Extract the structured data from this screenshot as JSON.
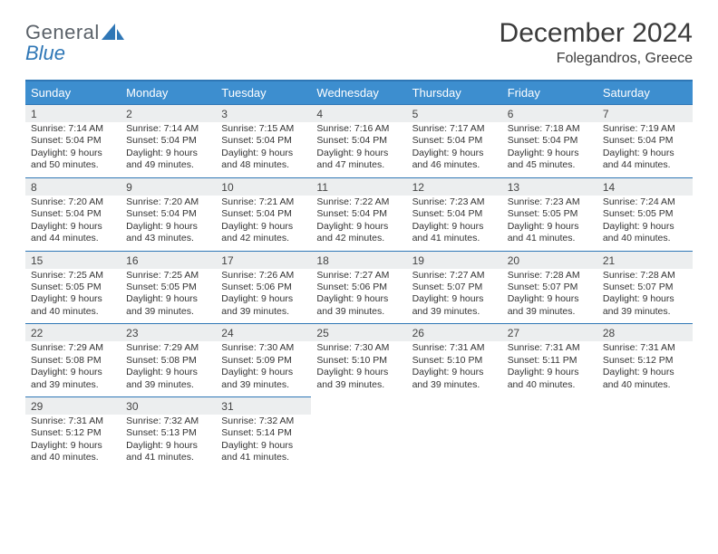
{
  "brand": {
    "line1": "General",
    "line2_prefix": "",
    "line2_blue": "Blue",
    "text_color": "#5b6269",
    "blue_color": "#2f77b6",
    "mark_color": "#2f77b6"
  },
  "title": {
    "month": "December 2024",
    "location": "Folegandros, Greece",
    "font_color": "#3b3b3b"
  },
  "divider_color": "#2f77b6",
  "header_row": {
    "bg": "#3d8ecf",
    "fg": "#ffffff",
    "labels": [
      "Sunday",
      "Monday",
      "Tuesday",
      "Wednesday",
      "Thursday",
      "Friday",
      "Saturday"
    ]
  },
  "daynum_row": {
    "bg": "#eceeef",
    "border": "#2f77b6"
  },
  "columns": 7,
  "days": [
    {
      "n": "1",
      "sunrise": "7:14 AM",
      "sunset": "5:04 PM",
      "dl_h": "9",
      "dl_m": "50"
    },
    {
      "n": "2",
      "sunrise": "7:14 AM",
      "sunset": "5:04 PM",
      "dl_h": "9",
      "dl_m": "49"
    },
    {
      "n": "3",
      "sunrise": "7:15 AM",
      "sunset": "5:04 PM",
      "dl_h": "9",
      "dl_m": "48"
    },
    {
      "n": "4",
      "sunrise": "7:16 AM",
      "sunset": "5:04 PM",
      "dl_h": "9",
      "dl_m": "47"
    },
    {
      "n": "5",
      "sunrise": "7:17 AM",
      "sunset": "5:04 PM",
      "dl_h": "9",
      "dl_m": "46"
    },
    {
      "n": "6",
      "sunrise": "7:18 AM",
      "sunset": "5:04 PM",
      "dl_h": "9",
      "dl_m": "45"
    },
    {
      "n": "7",
      "sunrise": "7:19 AM",
      "sunset": "5:04 PM",
      "dl_h": "9",
      "dl_m": "44"
    },
    {
      "n": "8",
      "sunrise": "7:20 AM",
      "sunset": "5:04 PM",
      "dl_h": "9",
      "dl_m": "44"
    },
    {
      "n": "9",
      "sunrise": "7:20 AM",
      "sunset": "5:04 PM",
      "dl_h": "9",
      "dl_m": "43"
    },
    {
      "n": "10",
      "sunrise": "7:21 AM",
      "sunset": "5:04 PM",
      "dl_h": "9",
      "dl_m": "42"
    },
    {
      "n": "11",
      "sunrise": "7:22 AM",
      "sunset": "5:04 PM",
      "dl_h": "9",
      "dl_m": "42"
    },
    {
      "n": "12",
      "sunrise": "7:23 AM",
      "sunset": "5:04 PM",
      "dl_h": "9",
      "dl_m": "41"
    },
    {
      "n": "13",
      "sunrise": "7:23 AM",
      "sunset": "5:05 PM",
      "dl_h": "9",
      "dl_m": "41"
    },
    {
      "n": "14",
      "sunrise": "7:24 AM",
      "sunset": "5:05 PM",
      "dl_h": "9",
      "dl_m": "40"
    },
    {
      "n": "15",
      "sunrise": "7:25 AM",
      "sunset": "5:05 PM",
      "dl_h": "9",
      "dl_m": "40"
    },
    {
      "n": "16",
      "sunrise": "7:25 AM",
      "sunset": "5:05 PM",
      "dl_h": "9",
      "dl_m": "39"
    },
    {
      "n": "17",
      "sunrise": "7:26 AM",
      "sunset": "5:06 PM",
      "dl_h": "9",
      "dl_m": "39"
    },
    {
      "n": "18",
      "sunrise": "7:27 AM",
      "sunset": "5:06 PM",
      "dl_h": "9",
      "dl_m": "39"
    },
    {
      "n": "19",
      "sunrise": "7:27 AM",
      "sunset": "5:07 PM",
      "dl_h": "9",
      "dl_m": "39"
    },
    {
      "n": "20",
      "sunrise": "7:28 AM",
      "sunset": "5:07 PM",
      "dl_h": "9",
      "dl_m": "39"
    },
    {
      "n": "21",
      "sunrise": "7:28 AM",
      "sunset": "5:07 PM",
      "dl_h": "9",
      "dl_m": "39"
    },
    {
      "n": "22",
      "sunrise": "7:29 AM",
      "sunset": "5:08 PM",
      "dl_h": "9",
      "dl_m": "39"
    },
    {
      "n": "23",
      "sunrise": "7:29 AM",
      "sunset": "5:08 PM",
      "dl_h": "9",
      "dl_m": "39"
    },
    {
      "n": "24",
      "sunrise": "7:30 AM",
      "sunset": "5:09 PM",
      "dl_h": "9",
      "dl_m": "39"
    },
    {
      "n": "25",
      "sunrise": "7:30 AM",
      "sunset": "5:10 PM",
      "dl_h": "9",
      "dl_m": "39"
    },
    {
      "n": "26",
      "sunrise": "7:31 AM",
      "sunset": "5:10 PM",
      "dl_h": "9",
      "dl_m": "39"
    },
    {
      "n": "27",
      "sunrise": "7:31 AM",
      "sunset": "5:11 PM",
      "dl_h": "9",
      "dl_m": "40"
    },
    {
      "n": "28",
      "sunrise": "7:31 AM",
      "sunset": "5:12 PM",
      "dl_h": "9",
      "dl_m": "40"
    },
    {
      "n": "29",
      "sunrise": "7:31 AM",
      "sunset": "5:12 PM",
      "dl_h": "9",
      "dl_m": "40"
    },
    {
      "n": "30",
      "sunrise": "7:32 AM",
      "sunset": "5:13 PM",
      "dl_h": "9",
      "dl_m": "41"
    },
    {
      "n": "31",
      "sunrise": "7:32 AM",
      "sunset": "5:14 PM",
      "dl_h": "9",
      "dl_m": "41"
    }
  ],
  "labels": {
    "sunrise": "Sunrise:",
    "sunset": "Sunset:",
    "daylight_prefix": "Daylight:",
    "hours_word": "hours",
    "and_word": "and",
    "minutes_word": "minutes."
  },
  "trailing_empty": 4
}
